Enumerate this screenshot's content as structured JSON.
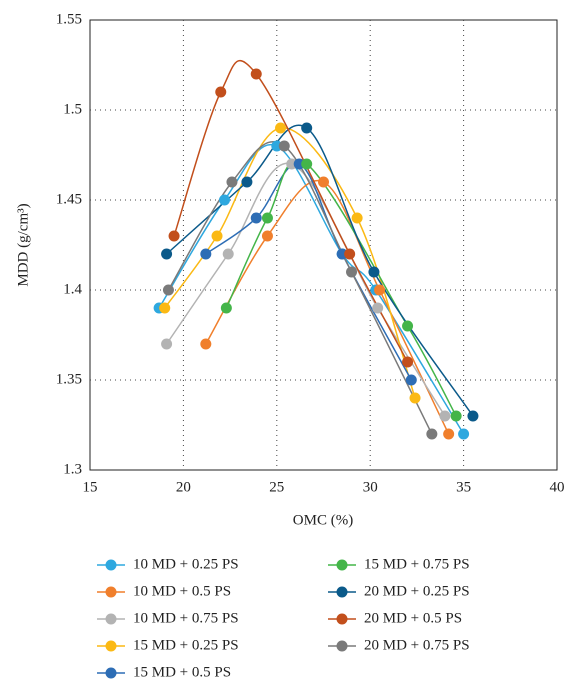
{
  "chart_data": {
    "type": "scatter-smooth",
    "xlabel": "OMC (%)",
    "ylabel": "MDD (g/cm³)",
    "xlim": [
      15,
      40
    ],
    "xticks": [
      15,
      20,
      25,
      30,
      35,
      40
    ],
    "ylim": [
      1.3,
      1.55
    ],
    "yticks": [
      1.3,
      1.35,
      1.4,
      1.45,
      1.5,
      1.55
    ],
    "grid": true,
    "legend": "bottom",
    "series": [
      {
        "name": "10 MD + 0.25 PS",
        "color": "#2ea8df",
        "x": [
          18.7,
          22.2,
          25.0,
          28.5,
          30.3,
          35.0
        ],
        "values": [
          1.39,
          1.45,
          1.48,
          1.42,
          1.4,
          1.32
        ]
      },
      {
        "name": "10 MD + 0.5 PS",
        "color": "#f07f2c",
        "x": [
          21.2,
          24.5,
          27.5,
          30.5,
          34.2
        ],
        "values": [
          1.37,
          1.43,
          1.46,
          1.4,
          1.32
        ]
      },
      {
        "name": "10 MD + 0.75 PS",
        "color": "#b3b3b3",
        "x": [
          19.1,
          22.4,
          25.8,
          30.4,
          34.0
        ],
        "values": [
          1.37,
          1.42,
          1.47,
          1.39,
          1.33
        ]
      },
      {
        "name": "15 MD + 0.25 PS",
        "color": "#fbb914",
        "x": [
          19.0,
          21.8,
          25.2,
          29.3,
          32.4
        ],
        "values": [
          1.39,
          1.43,
          1.49,
          1.44,
          1.34
        ]
      },
      {
        "name": "15 MD + 0.5 PS",
        "color": "#2d6db5",
        "x": [
          21.2,
          23.9,
          26.2,
          28.5,
          32.2
        ],
        "values": [
          1.42,
          1.44,
          1.47,
          1.42,
          1.35
        ]
      },
      {
        "name": "15 MD + 0.75 PS",
        "color": "#44b549",
        "x": [
          22.3,
          24.5,
          26.6,
          32.0,
          34.6
        ],
        "values": [
          1.39,
          1.44,
          1.47,
          1.38,
          1.33
        ]
      },
      {
        "name": "20 MD + 0.25 PS",
        "color": "#0b5a8a",
        "x": [
          19.1,
          23.4,
          26.6,
          30.2,
          35.5
        ],
        "values": [
          1.42,
          1.46,
          1.49,
          1.41,
          1.33
        ]
      },
      {
        "name": "20 MD + 0.5 PS",
        "color": "#c24f1c",
        "x": [
          19.5,
          22.0,
          23.9,
          28.9,
          32.0
        ],
        "values": [
          1.43,
          1.51,
          1.52,
          1.42,
          1.36
        ]
      },
      {
        "name": "20 MD + 0.75 PS",
        "color": "#7a7a7a",
        "x": [
          19.2,
          22.6,
          25.4,
          29.0,
          33.3
        ],
        "values": [
          1.4,
          1.46,
          1.48,
          1.41,
          1.32
        ]
      }
    ]
  }
}
